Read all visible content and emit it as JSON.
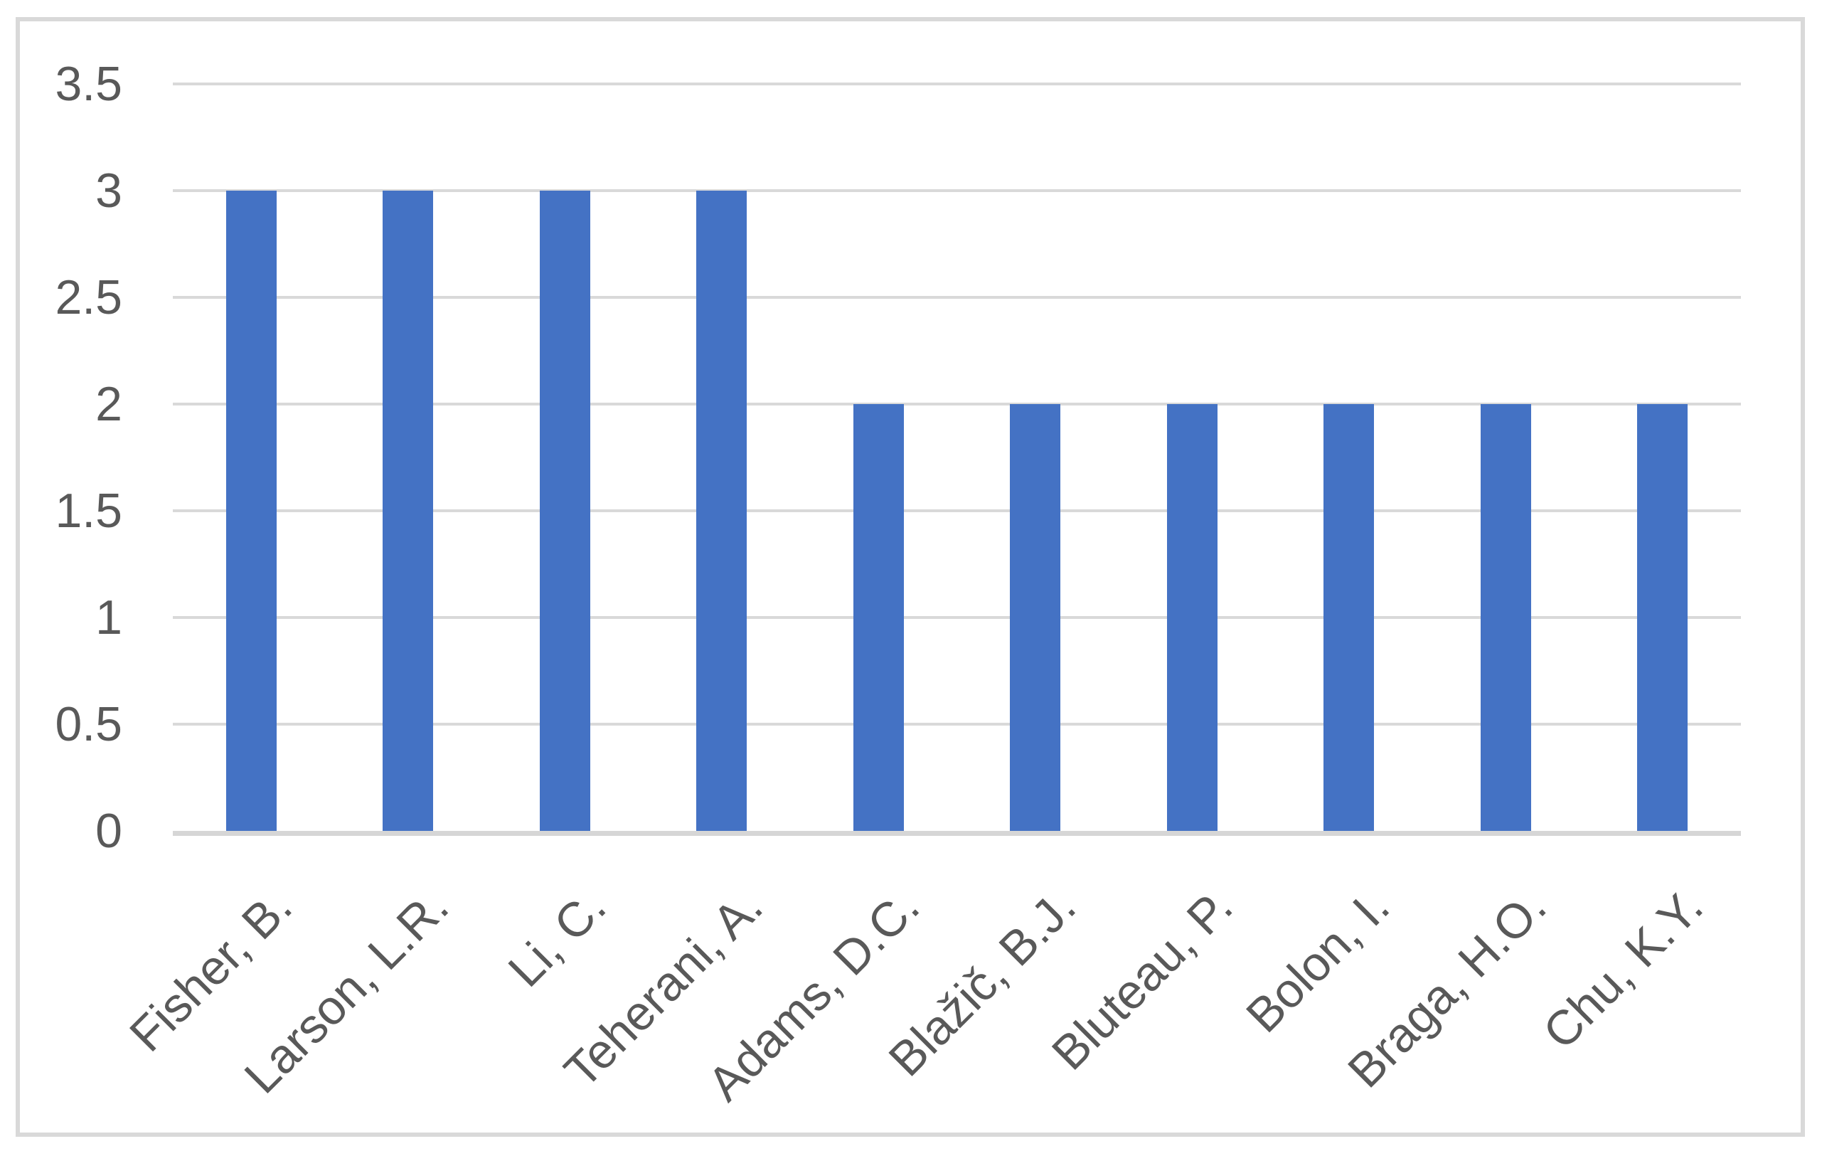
{
  "chart_data": {
    "type": "bar",
    "categories": [
      "Fisher, B.",
      "Larson, L.R.",
      "Li, C.",
      "Teherani, A.",
      "Adams, D.C.",
      "Blažič, B.J.",
      "Bluteau, P.",
      "Bolon, I.",
      "Braga, H.O.",
      "Chu, K.Y."
    ],
    "values": [
      3,
      3,
      3,
      3,
      2,
      2,
      2,
      2,
      2,
      2
    ],
    "ylim": [
      0,
      3.5
    ],
    "ytick_values": [
      0,
      0.5,
      1,
      1.5,
      2,
      2.5,
      3,
      3.5
    ],
    "ytick_labels": [
      "0",
      "0.5",
      "1",
      "1.5",
      "2",
      "2.5",
      "3",
      "3.5"
    ],
    "x_label_rotation_deg": 45,
    "grid": "horizontal",
    "legend": "none",
    "colors": {
      "bar": "#4472C4",
      "gridline": "#D9D9D9",
      "axis_line": "#D6D6D6",
      "tick_text": "#595959",
      "frame_border": "#D9D9D9",
      "background": "#FFFFFF"
    }
  }
}
